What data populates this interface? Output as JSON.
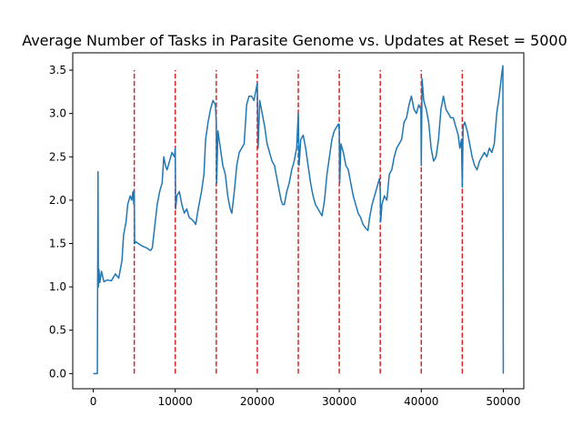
{
  "chart_data": {
    "type": "line",
    "title": "Average Number of Tasks in Parasite Genome vs. Updates at Reset = 5000",
    "xlabel": "",
    "ylabel": "",
    "xlim": [
      -2500,
      52500
    ],
    "ylim": [
      -0.175,
      3.7
    ],
    "x_ticks": [
      0,
      10000,
      20000,
      30000,
      40000,
      50000
    ],
    "y_ticks": [
      0.0,
      0.5,
      1.0,
      1.5,
      2.0,
      2.5,
      3.0,
      3.5
    ],
    "x_tick_labels": [
      "0",
      "10000",
      "20000",
      "30000",
      "40000",
      "50000"
    ],
    "y_tick_labels": [
      "0.0",
      "0.5",
      "1.0",
      "1.5",
      "2.0",
      "2.5",
      "3.0",
      "3.5"
    ],
    "grid": false,
    "series": [
      {
        "color": "#1f77b4",
        "points": [
          [
            0,
            0.0
          ],
          [
            500,
            0.0
          ],
          [
            580,
            2.33
          ],
          [
            620,
            1.0
          ],
          [
            700,
            1.2
          ],
          [
            800,
            1.05
          ],
          [
            1000,
            1.18
          ],
          [
            1300,
            1.06
          ],
          [
            1700,
            1.08
          ],
          [
            2200,
            1.07
          ],
          [
            2700,
            1.15
          ],
          [
            3100,
            1.1
          ],
          [
            3500,
            1.3
          ],
          [
            3700,
            1.6
          ],
          [
            4000,
            1.75
          ],
          [
            4200,
            1.95
          ],
          [
            4500,
            2.05
          ],
          [
            4700,
            2.0
          ],
          [
            4850,
            2.1
          ],
          [
            4950,
            1.95
          ],
          [
            5000,
            2.1
          ],
          [
            5050,
            1.5
          ],
          [
            5200,
            1.52
          ],
          [
            5500,
            1.5
          ],
          [
            6000,
            1.47
          ],
          [
            6500,
            1.45
          ],
          [
            6800,
            1.43
          ],
          [
            7000,
            1.42
          ],
          [
            7200,
            1.45
          ],
          [
            7500,
            1.7
          ],
          [
            7800,
            1.95
          ],
          [
            8100,
            2.1
          ],
          [
            8400,
            2.2
          ],
          [
            8600,
            2.5
          ],
          [
            8800,
            2.4
          ],
          [
            9000,
            2.35
          ],
          [
            9300,
            2.45
          ],
          [
            9600,
            2.55
          ],
          [
            9900,
            2.5
          ],
          [
            10000,
            2.6
          ],
          [
            10050,
            1.9
          ],
          [
            10200,
            2.05
          ],
          [
            10500,
            2.1
          ],
          [
            10800,
            1.95
          ],
          [
            11100,
            1.85
          ],
          [
            11400,
            1.9
          ],
          [
            11700,
            1.8
          ],
          [
            12000,
            1.78
          ],
          [
            12300,
            1.75
          ],
          [
            12500,
            1.72
          ],
          [
            12800,
            1.9
          ],
          [
            13200,
            2.1
          ],
          [
            13500,
            2.3
          ],
          [
            13700,
            2.7
          ],
          [
            14000,
            2.9
          ],
          [
            14300,
            3.05
          ],
          [
            14600,
            3.15
          ],
          [
            14900,
            3.1
          ],
          [
            15000,
            2.9
          ],
          [
            15050,
            2.2
          ],
          [
            15200,
            2.8
          ],
          [
            15500,
            2.6
          ],
          [
            15800,
            2.4
          ],
          [
            16100,
            2.3
          ],
          [
            16400,
            2.05
          ],
          [
            16700,
            1.9
          ],
          [
            16900,
            1.85
          ],
          [
            17200,
            2.1
          ],
          [
            17500,
            2.4
          ],
          [
            17800,
            2.55
          ],
          [
            18100,
            2.6
          ],
          [
            18400,
            2.65
          ],
          [
            18700,
            3.1
          ],
          [
            19000,
            3.2
          ],
          [
            19300,
            3.2
          ],
          [
            19600,
            3.15
          ],
          [
            19900,
            3.3
          ],
          [
            20000,
            3.35
          ],
          [
            20100,
            2.6
          ],
          [
            20300,
            3.15
          ],
          [
            20600,
            3.0
          ],
          [
            20900,
            2.85
          ],
          [
            21200,
            2.65
          ],
          [
            21500,
            2.55
          ],
          [
            21800,
            2.45
          ],
          [
            22100,
            2.4
          ],
          [
            22400,
            2.25
          ],
          [
            22700,
            2.1
          ],
          [
            22900,
            2.0
          ],
          [
            23100,
            1.95
          ],
          [
            23300,
            1.95
          ],
          [
            23600,
            2.1
          ],
          [
            23900,
            2.2
          ],
          [
            24200,
            2.35
          ],
          [
            24500,
            2.45
          ],
          [
            24800,
            2.6
          ],
          [
            25000,
            3.0
          ],
          [
            25100,
            2.4
          ],
          [
            25300,
            2.7
          ],
          [
            25600,
            2.75
          ],
          [
            25900,
            2.6
          ],
          [
            26200,
            2.4
          ],
          [
            26500,
            2.2
          ],
          [
            26800,
            2.05
          ],
          [
            27100,
            1.95
          ],
          [
            27400,
            1.9
          ],
          [
            27700,
            1.85
          ],
          [
            27900,
            1.82
          ],
          [
            28200,
            2.0
          ],
          [
            28500,
            2.3
          ],
          [
            28800,
            2.5
          ],
          [
            29100,
            2.7
          ],
          [
            29400,
            2.8
          ],
          [
            29700,
            2.85
          ],
          [
            29900,
            2.88
          ],
          [
            30000,
            2.8
          ],
          [
            30050,
            2.2
          ],
          [
            30200,
            2.65
          ],
          [
            30500,
            2.55
          ],
          [
            30800,
            2.4
          ],
          [
            31100,
            2.35
          ],
          [
            31400,
            2.2
          ],
          [
            31700,
            2.05
          ],
          [
            32000,
            1.95
          ],
          [
            32300,
            1.85
          ],
          [
            32600,
            1.8
          ],
          [
            32900,
            1.72
          ],
          [
            33200,
            1.68
          ],
          [
            33500,
            1.65
          ],
          [
            33700,
            1.8
          ],
          [
            34000,
            1.95
          ],
          [
            34300,
            2.05
          ],
          [
            34600,
            2.15
          ],
          [
            34900,
            2.25
          ],
          [
            35000,
            2.1
          ],
          [
            35050,
            1.75
          ],
          [
            35200,
            1.95
          ],
          [
            35500,
            2.05
          ],
          [
            35800,
            2.0
          ],
          [
            36100,
            2.3
          ],
          [
            36400,
            2.35
          ],
          [
            36700,
            2.5
          ],
          [
            37000,
            2.6
          ],
          [
            37300,
            2.65
          ],
          [
            37600,
            2.7
          ],
          [
            37900,
            2.9
          ],
          [
            38200,
            2.95
          ],
          [
            38500,
            3.1
          ],
          [
            38800,
            3.2
          ],
          [
            39100,
            3.05
          ],
          [
            39400,
            3.0
          ],
          [
            39700,
            3.1
          ],
          [
            39950,
            3.05
          ],
          [
            40000,
            2.4
          ],
          [
            40100,
            3.4
          ],
          [
            40300,
            3.15
          ],
          [
            40600,
            3.05
          ],
          [
            40900,
            2.9
          ],
          [
            41200,
            2.6
          ],
          [
            41500,
            2.45
          ],
          [
            41800,
            2.5
          ],
          [
            42100,
            2.7
          ],
          [
            42400,
            3.05
          ],
          [
            42700,
            3.2
          ],
          [
            43000,
            3.05
          ],
          [
            43300,
            3.0
          ],
          [
            43600,
            2.95
          ],
          [
            43900,
            2.95
          ],
          [
            44200,
            2.85
          ],
          [
            44500,
            2.75
          ],
          [
            44700,
            2.6
          ],
          [
            44900,
            2.7
          ],
          [
            45000,
            2.15
          ],
          [
            45100,
            2.85
          ],
          [
            45300,
            2.9
          ],
          [
            45600,
            2.8
          ],
          [
            45900,
            2.65
          ],
          [
            46200,
            2.5
          ],
          [
            46500,
            2.4
          ],
          [
            46800,
            2.35
          ],
          [
            47100,
            2.45
          ],
          [
            47400,
            2.5
          ],
          [
            47700,
            2.55
          ],
          [
            48000,
            2.5
          ],
          [
            48300,
            2.6
          ],
          [
            48600,
            2.55
          ],
          [
            48900,
            2.65
          ],
          [
            49200,
            3.0
          ],
          [
            49500,
            3.2
          ],
          [
            49800,
            3.45
          ],
          [
            49950,
            3.55
          ],
          [
            50000,
            0.0
          ]
        ]
      }
    ],
    "vlines": {
      "color": "#d62728",
      "style": "dashed",
      "x": [
        5000,
        10000,
        15000,
        20000,
        25000,
        30000,
        35000,
        40000,
        45000
      ],
      "y_range": [
        0.0,
        3.5
      ]
    },
    "legend": null
  }
}
